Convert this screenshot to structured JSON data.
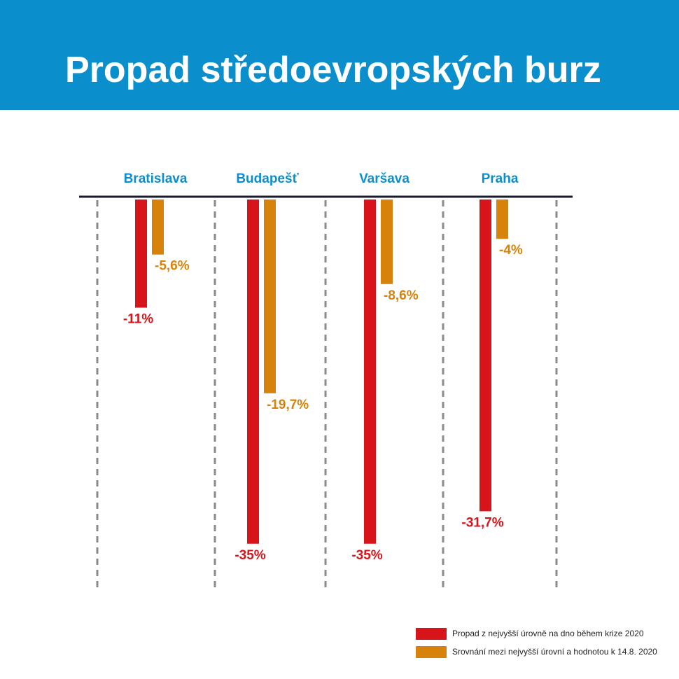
{
  "header": {
    "title": "Propad středoevropských burz"
  },
  "colors": {
    "header_bg": "#0a8fcc",
    "red": "#d7141a",
    "orange": "#d7820a",
    "city_label": "#0a8fcc",
    "axis": "#1a1a2e"
  },
  "chart_data": {
    "type": "bar",
    "title": "Propad středoevropských burz",
    "categories": [
      "Bratislava",
      "Budapešť",
      "Varšava",
      "Praha"
    ],
    "series": [
      {
        "name": "Propad z nejvyšší úrovně na dno během krize 2020",
        "values": [
          -11,
          -35,
          -35,
          -31.7
        ],
        "labels": [
          "-11%",
          "-35%",
          "-35%",
          "-31,7%"
        ],
        "color": "#d7141a"
      },
      {
        "name": "Srovnání mezi nejvyšší úrovní a hodnotou k 14.8. 2020",
        "values": [
          -5.6,
          -19.7,
          -8.6,
          -4
        ],
        "labels": [
          "-5,6%",
          "-19,7%",
          "-8,6%",
          "-4%"
        ],
        "color": "#d7820a"
      }
    ],
    "ylim": [
      -35,
      0
    ],
    "legend_position": "bottom-right",
    "grid": "vertical dashed separators"
  }
}
